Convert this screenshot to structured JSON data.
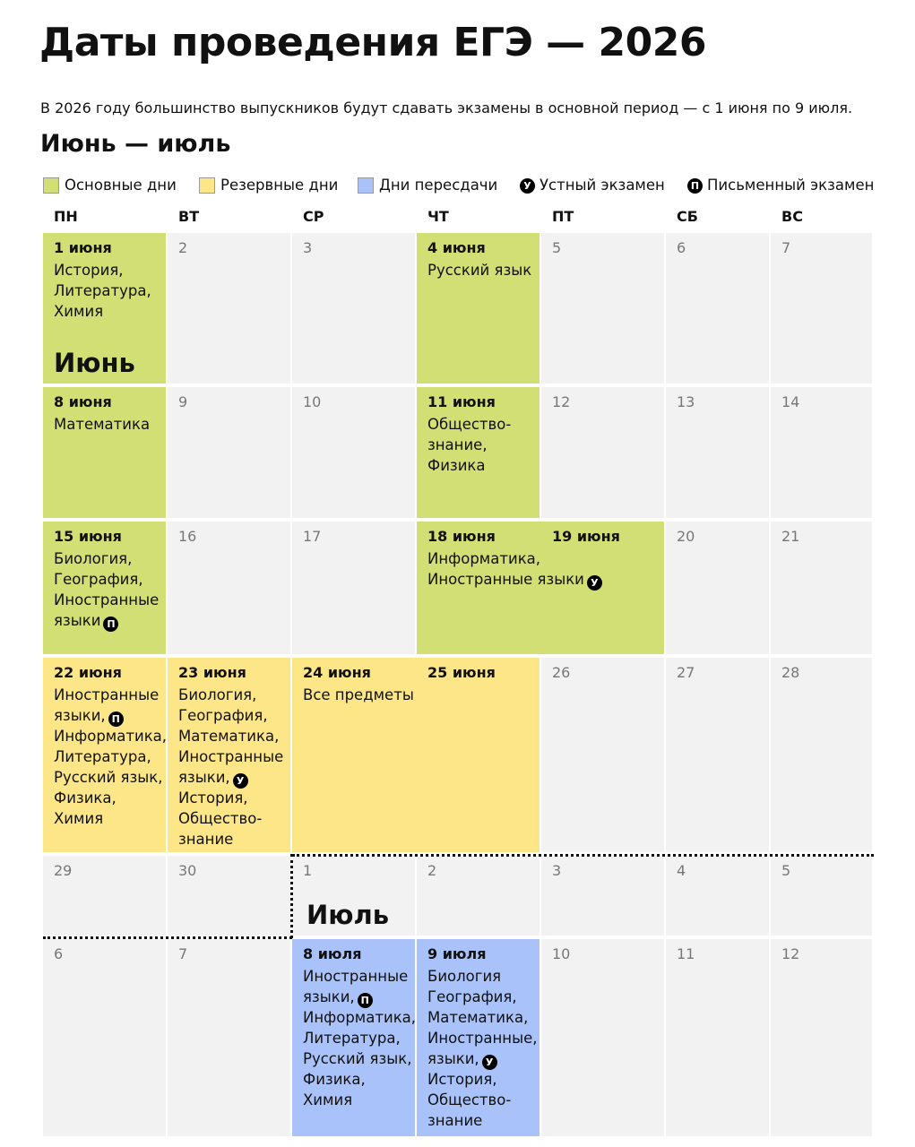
{
  "title": "Даты проведения ЕГЭ — 2026",
  "subtitle": "В 2026 году большинство выпускников будут сдавать экзамены в основной период — с 1 июня по 9 июля.",
  "section": "Июнь — июль",
  "legend": [
    {
      "label": "Основные дни",
      "color": "#d1df74"
    },
    {
      "label": "Резервные дни",
      "color": "#fde687"
    },
    {
      "label": "Дни пересдачи",
      "color": "#a9c3fa"
    },
    {
      "icon": "У",
      "label": "Устный экзамен"
    },
    {
      "icon": "П",
      "label": "Письменный экзамен"
    }
  ],
  "weekdays": [
    "ПН",
    "ВТ",
    "СР",
    "ЧТ",
    "ПТ",
    "СБ",
    "ВС"
  ],
  "weeks": [
    [
      {
        "days": [
          "1 июня"
        ],
        "lines": [
          "История,",
          "Литература,",
          "Химия"
        ],
        "month": "Июнь",
        "color": "#d1df74"
      },
      {
        "days": [
          "2"
        ]
      },
      {
        "days": [
          "3"
        ]
      },
      {
        "days": [
          "4 июня"
        ],
        "lines": [
          "Русский язык"
        ],
        "color": "#d1df74"
      },
      {
        "days": [
          "5"
        ]
      },
      {
        "days": [
          "6"
        ]
      },
      {
        "days": [
          "7"
        ]
      }
    ],
    [
      {
        "days": [
          "8 июня"
        ],
        "lines": [
          "Математика"
        ],
        "color": "#d1df74"
      },
      {
        "days": [
          "9"
        ]
      },
      {
        "days": [
          "10"
        ]
      },
      {
        "days": [
          "11 июня"
        ],
        "lines": [
          "Общество-",
          "знание,",
          "Физика"
        ],
        "color": "#d1df74"
      },
      {
        "days": [
          "12"
        ]
      },
      {
        "days": [
          "13"
        ]
      },
      {
        "days": [
          "14"
        ]
      }
    ],
    [
      {
        "days": [
          "15 июня"
        ],
        "lines": [
          "Биология,",
          "География,",
          "Иностранные",
          {
            "text": "языки",
            "icon": "П"
          }
        ],
        "color": "#d1df74"
      },
      {
        "days": [
          "16"
        ]
      },
      {
        "days": [
          "17"
        ]
      },
      {
        "days": [
          "18 июня",
          "19 июня"
        ],
        "lines": [
          "Информатика,",
          {
            "text": "Иностранные языки",
            "icon": "У"
          }
        ],
        "color": "#d1df74"
      },
      {
        "days": [
          "20"
        ]
      },
      {
        "days": [
          "21"
        ]
      }
    ],
    [
      {
        "days": [
          "22 июня"
        ],
        "lines": [
          "Иностранные",
          {
            "text": "языки,",
            "icon": "П"
          },
          "Информатика,",
          "Литература,",
          "Русский язык,",
          "Физика,",
          "Химия"
        ],
        "color": "#fde687"
      },
      {
        "days": [
          "23 июня"
        ],
        "lines": [
          "Биология,",
          "География,",
          "Математика,",
          "Иностранные",
          {
            "text": "языки,",
            "icon": "У"
          },
          "История,",
          "Общество-",
          "знание"
        ],
        "color": "#fde687"
      },
      {
        "days": [
          "24 июня",
          "25 июня"
        ],
        "lines": [
          "Все предметы"
        ],
        "color": "#fde687"
      },
      {
        "days": [
          "26"
        ]
      },
      {
        "days": [
          "27"
        ]
      },
      {
        "days": [
          "28"
        ]
      }
    ],
    [
      {
        "days": [
          "29"
        ]
      },
      {
        "days": [
          "30"
        ]
      },
      {
        "days": [
          "1"
        ],
        "month": "Июль"
      },
      {
        "days": [
          "2"
        ]
      },
      {
        "days": [
          "3"
        ]
      },
      {
        "days": [
          "4"
        ]
      },
      {
        "days": [
          "5"
        ]
      }
    ],
    [
      {
        "days": [
          "6"
        ]
      },
      {
        "days": [
          "7"
        ]
      },
      {
        "days": [
          "8 июля"
        ],
        "lines": [
          "Иностранные",
          {
            "text": "языки,",
            "icon": "П"
          },
          "Информатика,",
          "Литература,",
          "Русский язык,",
          "Физика,",
          "Химия"
        ],
        "color": "#a9c3fa"
      },
      {
        "days": [
          "9 июля"
        ],
        "lines": [
          "Биология",
          "География,",
          "Математика,",
          "Иностранные,",
          {
            "text": "языки,",
            "icon": "У"
          },
          "История,",
          "Общество-",
          "знание"
        ],
        "color": "#a9c3fa"
      },
      {
        "days": [
          "10"
        ]
      },
      {
        "days": [
          "11"
        ]
      },
      {
        "days": [
          "12"
        ]
      }
    ]
  ]
}
